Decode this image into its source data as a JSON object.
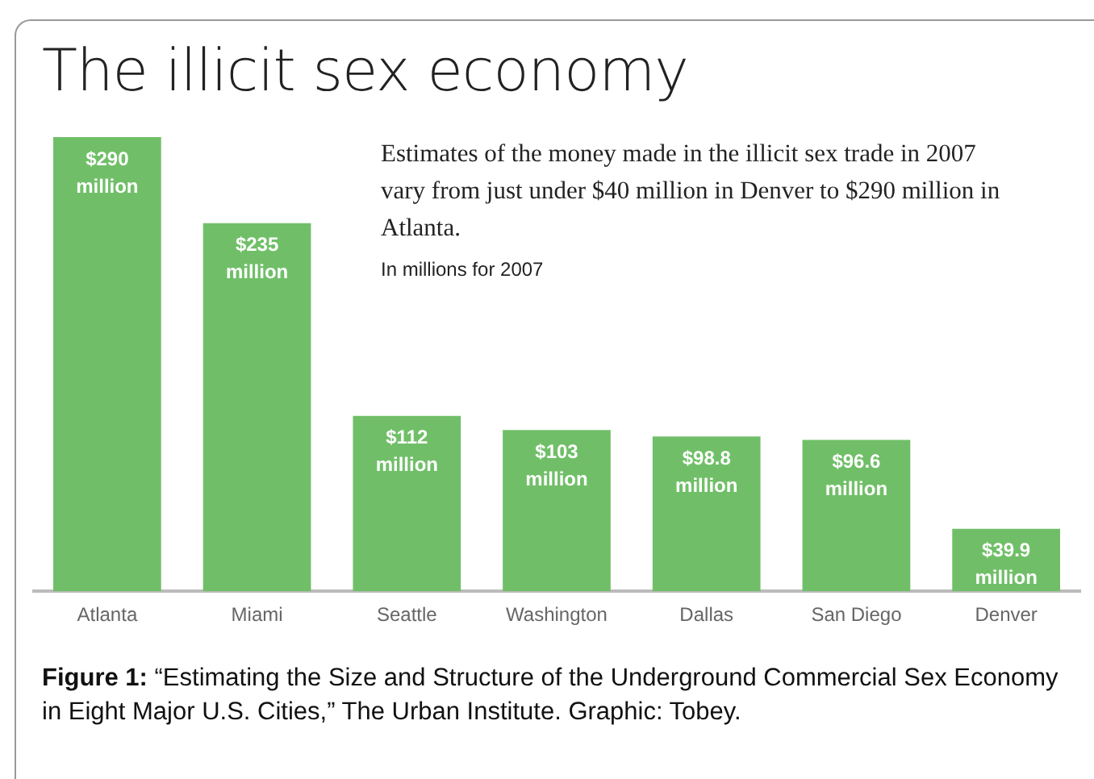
{
  "chart_data": {
    "type": "bar",
    "title": "The illicit sex economy",
    "subtitle": "Estimates of the money made in the illicit sex trade in 2007 vary from just under $40 million in Denver to $290 million in Atlanta.",
    "annotations": [
      "In millions for 2007",
      "Figure 1: “Estimating the Size and Structure of the Underground Commercial Sex Economy in Eight Major U.S. Cities,” The Urban Institute. Graphic: Tobey."
    ],
    "categories": [
      "Atlanta",
      "Miami",
      "Seattle",
      "Washington",
      "Dallas",
      "San Diego",
      "Denver"
    ],
    "values": [
      290,
      235,
      112,
      103,
      98.8,
      96.6,
      39.9
    ],
    "value_labels": [
      "$290 million",
      "$235 million",
      "$112 million",
      "$103 million",
      "$98.8 million",
      "$96.6 million",
      "$39.9 million"
    ],
    "color": "#70bf68",
    "grid": false,
    "legend": false,
    "tick_labels": "x"
  }
}
